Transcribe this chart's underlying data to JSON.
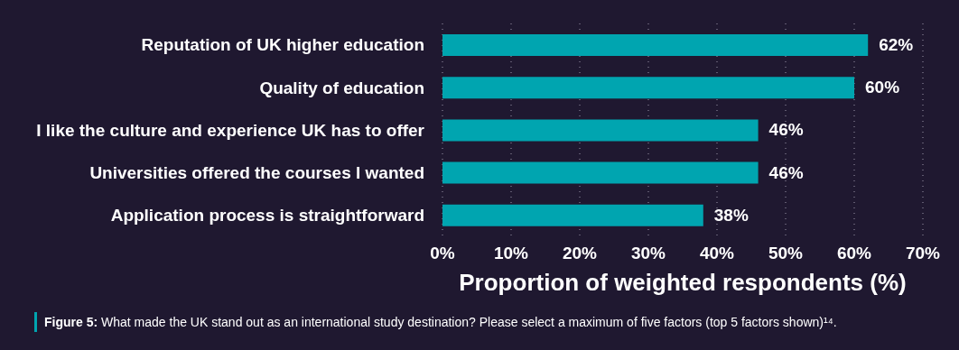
{
  "chart_data": {
    "type": "bar",
    "orientation": "horizontal",
    "xlabel": "Proportion of weighted respondents (%)",
    "categories": [
      "Reputation of UK higher education",
      "Quality of education",
      "I like the culture and experience UK has to offer",
      "Universities offered the courses I wanted",
      "Application process is straightforward"
    ],
    "values": [
      62,
      60,
      46,
      46,
      38
    ],
    "color": "#00a5b0",
    "value_labels": [
      "62%",
      "60%",
      "46%",
      "46%",
      "38%"
    ],
    "xlim": [
      0,
      70
    ],
    "xticks": [
      {
        "value": 0,
        "label": "0%"
      },
      {
        "value": 10,
        "label": "10%"
      },
      {
        "value": 20,
        "label": "20%"
      },
      {
        "value": 30,
        "label": "30%"
      },
      {
        "value": 40,
        "label": "40%"
      },
      {
        "value": 50,
        "label": "50%"
      },
      {
        "value": 60,
        "label": "60%"
      },
      {
        "value": 70,
        "label": "70%"
      }
    ],
    "grid": "x",
    "annotations": [
      "Figure 5:",
      "What made the UK stand out as an international study destination? Please select a maximum of five factors (top 5 factors shown)¹⁴."
    ]
  }
}
